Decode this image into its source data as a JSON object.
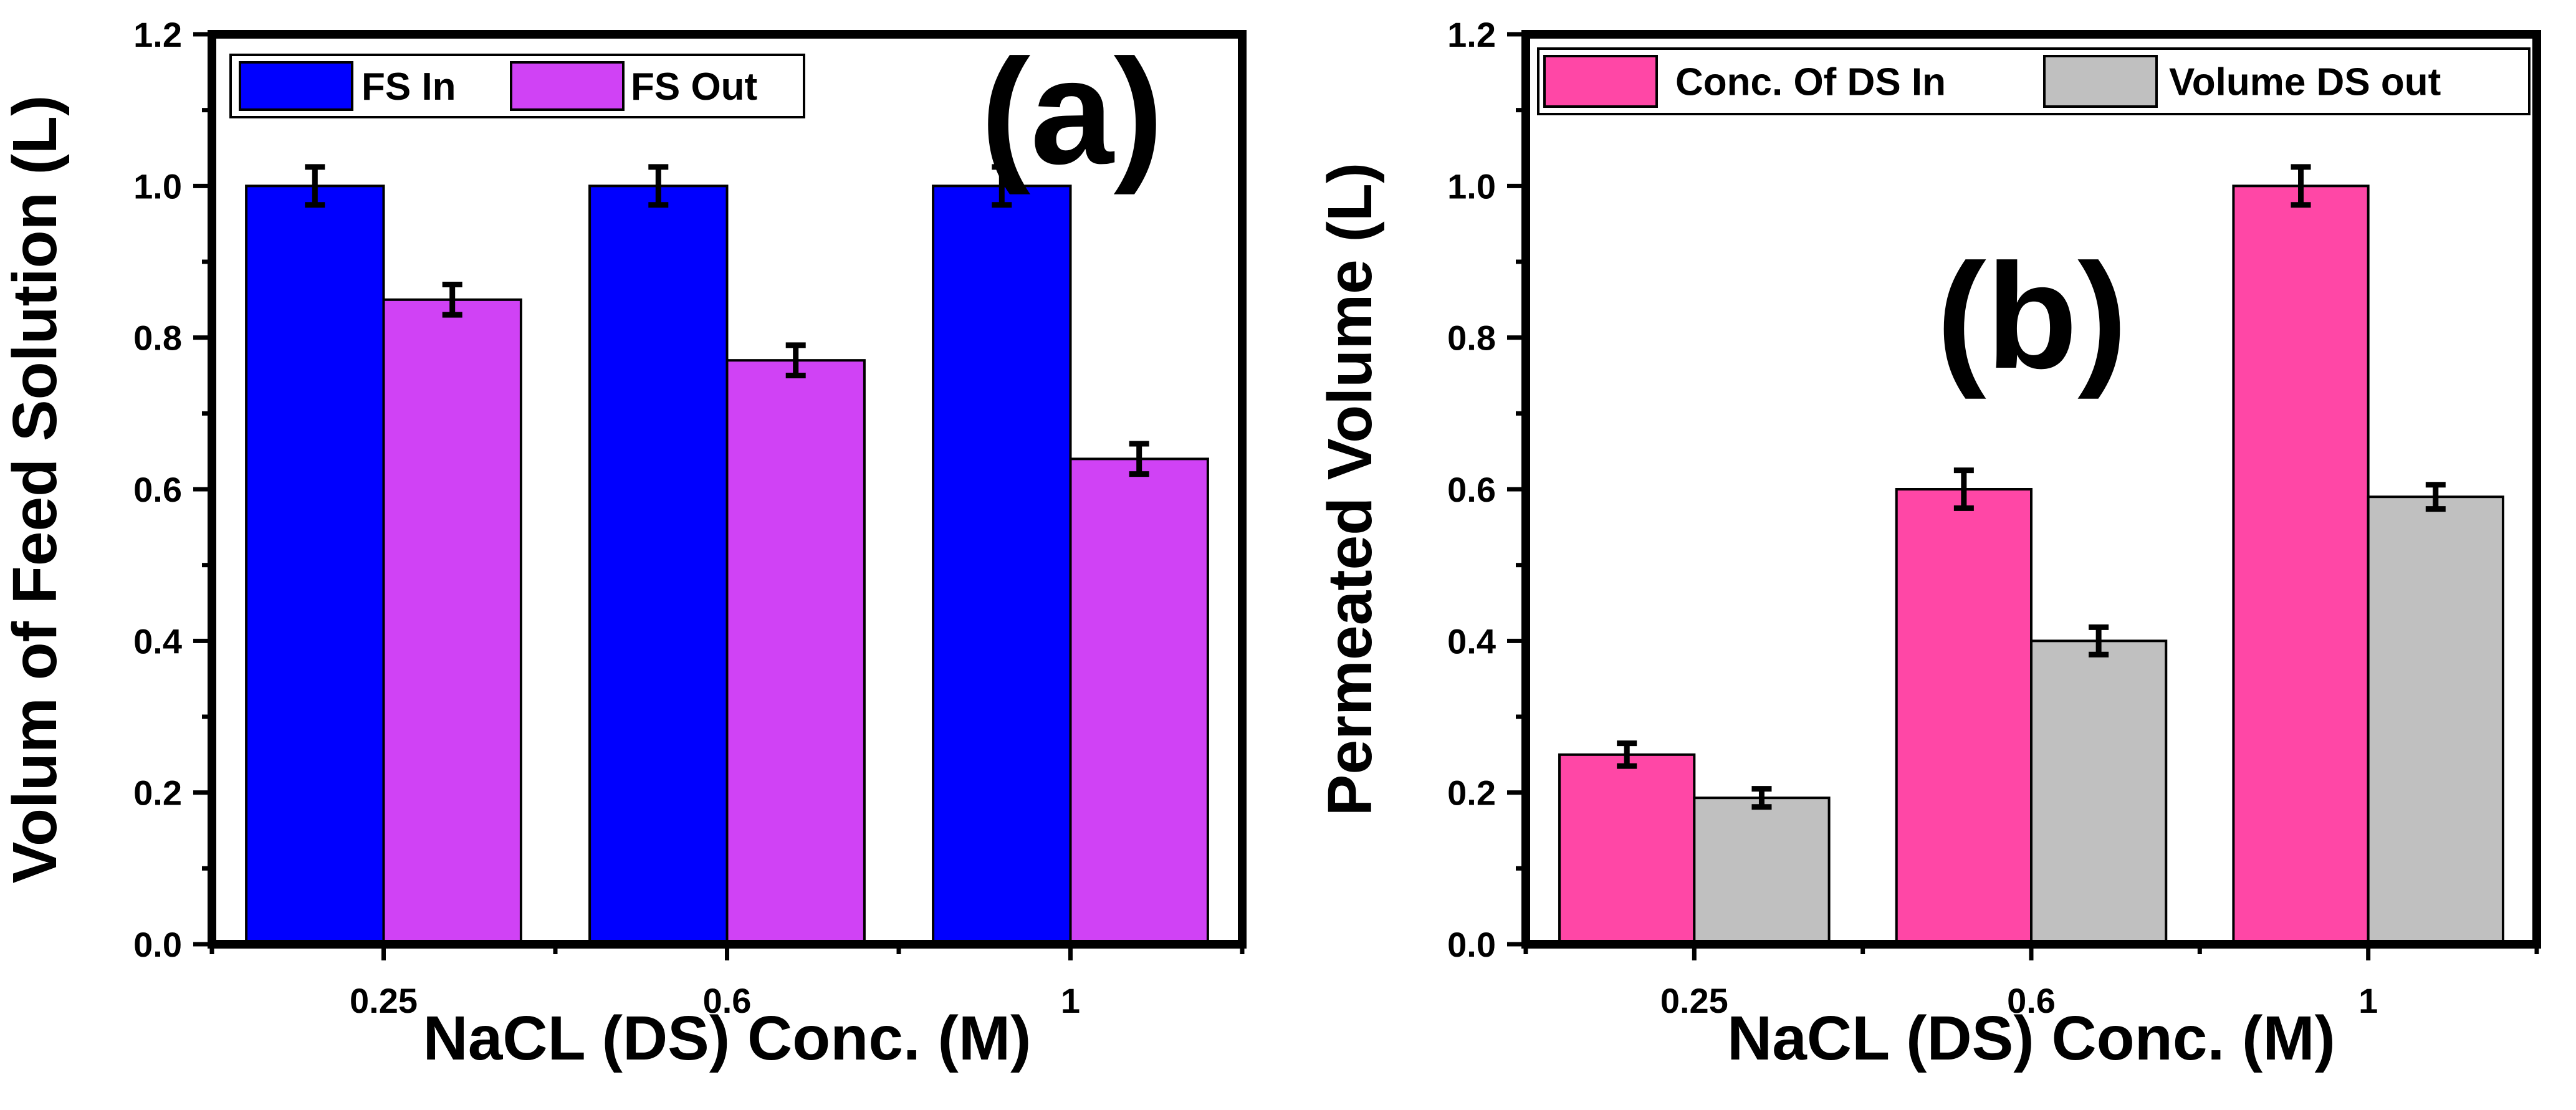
{
  "chart_data": [
    {
      "type": "bar",
      "panel_label": "(a)",
      "categories": [
        "0.25",
        "0.6",
        "1"
      ],
      "series": [
        {
          "name": "FS In",
          "color": "#0000FF",
          "values": [
            1.0,
            1.0,
            1.0
          ],
          "errors": [
            0.025,
            0.025,
            0.025
          ]
        },
        {
          "name": "FS Out",
          "color": "#D042F5",
          "values": [
            0.85,
            0.77,
            0.64
          ],
          "errors": [
            0.02,
            0.02,
            0.02
          ]
        }
      ],
      "xlabel": "NaCL (DS) Conc. (M)",
      "ylabel": "Volum of Feed Solution (L)",
      "ylim": [
        0,
        1.2
      ],
      "yticks": [
        "0.0",
        "0.2",
        "0.4",
        "0.6",
        "0.8",
        "1.0",
        "1.2"
      ],
      "legend": "top-left"
    },
    {
      "type": "bar",
      "panel_label": "(b)",
      "categories": [
        "0.25",
        "0.6",
        "1"
      ],
      "series": [
        {
          "name": "Conc. Of DS In",
          "color": "#FF47A6",
          "values": [
            0.25,
            0.6,
            1.0
          ],
          "errors": [
            0.015,
            0.025,
            0.025
          ]
        },
        {
          "name": "Volume DS out",
          "color": "#C0C0C0",
          "values": [
            0.193,
            0.4,
            0.59
          ],
          "errors": [
            0.012,
            0.018,
            0.016
          ]
        }
      ],
      "xlabel": "NaCL (DS) Conc. (M)",
      "ylabel": "Permeated Volume (L)",
      "ylim": [
        0,
        1.2
      ],
      "yticks": [
        "0.0",
        "0.2",
        "0.4",
        "0.6",
        "0.8",
        "1.0",
        "1.2"
      ],
      "legend": "top"
    }
  ]
}
